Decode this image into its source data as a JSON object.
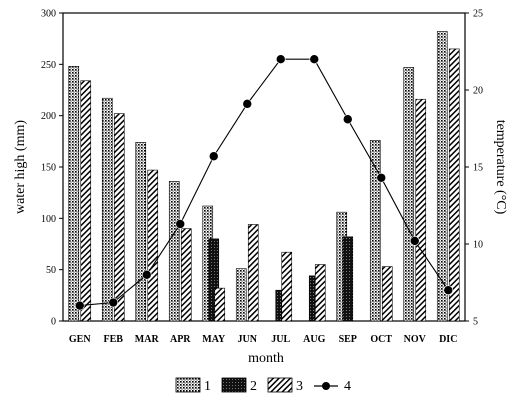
{
  "chart_data": {
    "type": "bar",
    "categories": [
      "GEN",
      "FEB",
      "MAR",
      "APR",
      "MAY",
      "JUN",
      "JUL",
      "AUG",
      "SEP",
      "OCT",
      "NOV",
      "DIC"
    ],
    "xlabel": "month",
    "ylabel": "water high (mm)",
    "y2label": "temperature (°C)",
    "ylim": [
      0,
      300
    ],
    "y2lim": [
      5,
      25
    ],
    "yticks": [
      0,
      50,
      100,
      150,
      200,
      250,
      300
    ],
    "y2ticks": [
      5,
      10,
      15,
      20,
      25
    ],
    "legend_position": "bottom",
    "grid": false,
    "series": [
      {
        "name": "1",
        "type": "bar",
        "axis": "left",
        "pattern": "dots",
        "values": [
          248,
          217,
          174,
          136,
          112,
          51,
          0,
          0,
          106,
          176,
          247,
          282
        ]
      },
      {
        "name": "2",
        "type": "bar",
        "axis": "left",
        "pattern": "dark",
        "values": [
          0,
          0,
          0,
          0,
          80,
          0,
          30,
          44,
          82,
          0,
          0,
          0
        ]
      },
      {
        "name": "3",
        "type": "bar",
        "axis": "left",
        "pattern": "hatch",
        "values": [
          234,
          202,
          147,
          90,
          32,
          94,
          67,
          55,
          0,
          53,
          216,
          265
        ]
      },
      {
        "name": "4",
        "type": "line",
        "axis": "right",
        "values": [
          6.0,
          6.2,
          8.0,
          11.3,
          15.7,
          19.1,
          22.0,
          22.0,
          18.1,
          14.3,
          10.2,
          7.0
        ]
      }
    ]
  }
}
